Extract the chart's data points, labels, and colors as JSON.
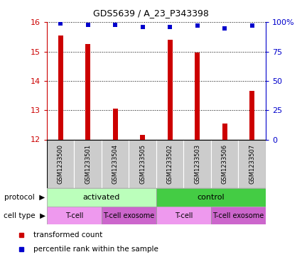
{
  "title": "GDS5639 / A_23_P343398",
  "samples": [
    "GSM1233500",
    "GSM1233501",
    "GSM1233504",
    "GSM1233505",
    "GSM1233502",
    "GSM1233503",
    "GSM1233506",
    "GSM1233507"
  ],
  "transformed_counts": [
    15.55,
    15.25,
    13.05,
    12.15,
    15.4,
    14.98,
    12.55,
    13.65
  ],
  "percentile_ranks": [
    99,
    98,
    98,
    96,
    96,
    97,
    95,
    97
  ],
  "ylim_left": [
    12,
    16
  ],
  "ylim_right": [
    0,
    100
  ],
  "yticks_left": [
    12,
    13,
    14,
    15,
    16
  ],
  "yticks_right": [
    0,
    25,
    50,
    75,
    100
  ],
  "ytick_labels_right": [
    "0",
    "25",
    "50",
    "75",
    "100%"
  ],
  "bar_color": "#cc0000",
  "dot_color": "#0000cc",
  "protocol_groups": [
    {
      "label": "activated",
      "start": 0,
      "end": 4,
      "color": "#bbffbb"
    },
    {
      "label": "control",
      "start": 4,
      "end": 8,
      "color": "#44cc44"
    }
  ],
  "cell_type_groups": [
    {
      "label": "T-cell",
      "start": 0,
      "end": 2,
      "color": "#ee99ee"
    },
    {
      "label": "T-cell exosome",
      "start": 2,
      "end": 4,
      "color": "#cc66cc"
    },
    {
      "label": "T-cell",
      "start": 4,
      "end": 6,
      "color": "#ee99ee"
    },
    {
      "label": "T-cell exosome",
      "start": 6,
      "end": 8,
      "color": "#cc66cc"
    }
  ],
  "legend_items": [
    {
      "label": "transformed count",
      "color": "#cc0000"
    },
    {
      "label": "percentile rank within the sample",
      "color": "#0000cc"
    }
  ],
  "sample_area_color": "#cccccc",
  "left_axis_color": "#cc0000",
  "right_axis_color": "#0000cc",
  "bar_width": 0.18,
  "dot_size": 5
}
